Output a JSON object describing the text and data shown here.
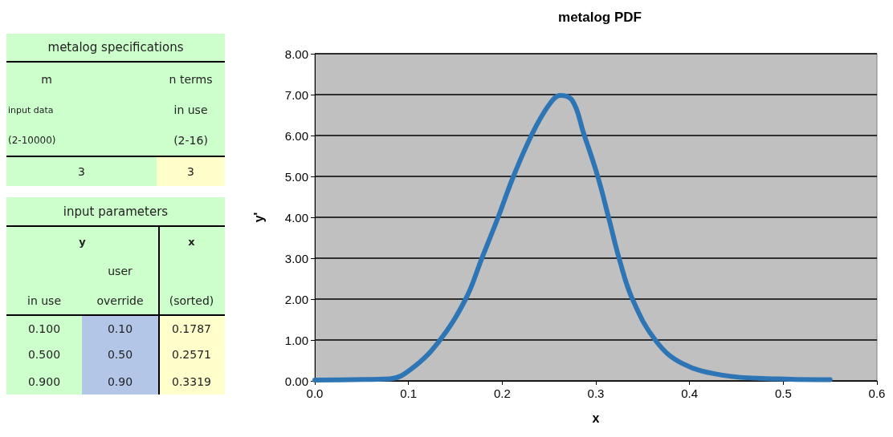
{
  "chart_data": [
    {
      "type": "other",
      "title": "metalog specifications",
      "annotations": [
        "m",
        "n terms",
        "input data",
        "in use",
        "(2-10000)",
        "(2-16)",
        "3",
        "3"
      ]
    },
    {
      "type": "other",
      "title": "input parameters",
      "annotations": [
        "y",
        "x",
        "user",
        "in use",
        "override",
        "(sorted)",
        "0.100",
        "0.10",
        "0.1787",
        "0.500",
        "0.50",
        "0.2571",
        "0.900",
        "0.90",
        "0.3319"
      ]
    },
    {
      "type": "line",
      "title": "metalog PDF",
      "xlabel": "x",
      "ylabel": "y'",
      "x": [
        0.0,
        0.04,
        0.08,
        0.103,
        0.132,
        0.161,
        0.178,
        0.195,
        0.212,
        0.232,
        0.25,
        0.262,
        0.275,
        0.287,
        0.302,
        0.314,
        0.325,
        0.339,
        0.364,
        0.392,
        0.435,
        0.493,
        0.55
      ],
      "series": [
        {
          "color": "#2e75b6",
          "values": [
            0.02,
            0.03,
            0.05,
            0.29,
            0.95,
            2.0,
            2.98,
            3.96,
            5.0,
            6.04,
            6.75,
            6.98,
            6.85,
            6.05,
            5.0,
            3.96,
            2.98,
            2.0,
            0.98,
            0.43,
            0.14,
            0.05,
            0.03
          ]
        }
      ],
      "xlim": [
        0,
        0.6
      ],
      "xticks": [
        {
          "value": 0,
          "label": "0.0"
        },
        0.1,
        0.2,
        0.3,
        0.4,
        0.5,
        0.6
      ],
      "ylim": [
        0,
        8
      ],
      "yticks": [
        {
          "value": 0,
          "label": "0.00"
        },
        {
          "value": 1,
          "label": "1.00"
        },
        {
          "value": 2,
          "label": "2.00"
        },
        {
          "value": 3,
          "label": "3.00"
        },
        {
          "value": 4,
          "label": "4.00"
        },
        {
          "value": 5,
          "label": "5.00"
        },
        {
          "value": 6,
          "label": "6.00"
        },
        {
          "value": 7,
          "label": "7.00"
        },
        {
          "value": 8,
          "label": "8.00"
        }
      ],
      "grid": "y",
      "marker": "none",
      "line_style": "solid"
    }
  ]
}
